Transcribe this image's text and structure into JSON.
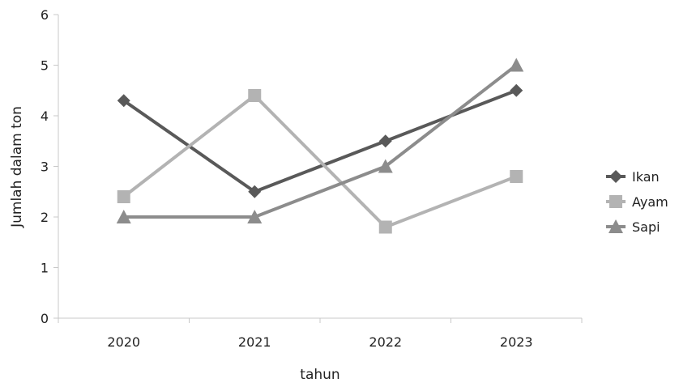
{
  "chart_data": {
    "type": "line",
    "xlabel": "tahun",
    "ylabel": "Jumlah dalam ton",
    "categories": [
      "2020",
      "2021",
      "2022",
      "2023"
    ],
    "ylim": [
      0,
      6
    ],
    "yticks": [
      0,
      1,
      2,
      3,
      4,
      5,
      6
    ],
    "grid": false,
    "legend_position": "right",
    "series": [
      {
        "name": "Ikan",
        "values": [
          4.3,
          2.5,
          3.5,
          4.5
        ],
        "color": "#595959",
        "marker": "diamond"
      },
      {
        "name": "Ayam",
        "values": [
          2.4,
          4.4,
          1.8,
          2.8
        ],
        "color": "#b3b3b3",
        "marker": "square"
      },
      {
        "name": "Sapi",
        "values": [
          2.0,
          2.0,
          3.0,
          5.0
        ],
        "color": "#8c8c8c",
        "marker": "triangle"
      }
    ]
  }
}
